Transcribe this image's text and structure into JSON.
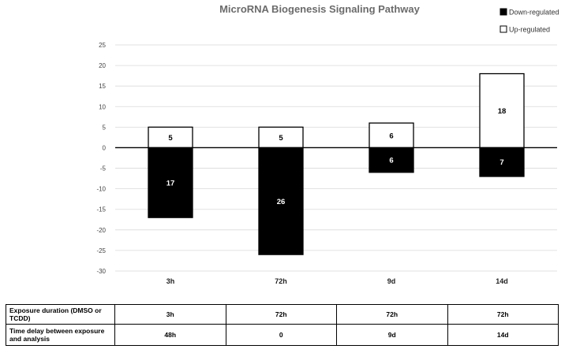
{
  "chart_data": {
    "type": "bar",
    "title": "MicroRNA Biogenesis Signaling Pathway",
    "categories": [
      "3h",
      "72h",
      "9d",
      "14d"
    ],
    "series": [
      {
        "name": "Down-regulated",
        "values": [
          -17,
          -26,
          -6,
          -7
        ],
        "labels": [
          "17",
          "26",
          "6",
          "7"
        ],
        "color": "#000000"
      },
      {
        "name": "Up-regulated",
        "values": [
          5,
          5,
          6,
          18
        ],
        "labels": [
          "5",
          "5",
          "6",
          "18"
        ],
        "color": "#ffffff"
      }
    ],
    "ylim": [
      -30,
      25
    ],
    "yticks": [
      "25",
      "20",
      "15",
      "10",
      "5",
      "0",
      "-5",
      "-10",
      "-15",
      "-20",
      "-25",
      "-30"
    ],
    "stacked": true,
    "grid": true,
    "legend_position": "top-right"
  },
  "table": {
    "rows": [
      {
        "header": "Exposure duration (DMSO or TCDD)",
        "cells": [
          "3h",
          "72h",
          "72h",
          "72h"
        ]
      },
      {
        "header": "Time delay between exposure and analysis",
        "cells": [
          "48h",
          "0",
          "9d",
          "14d"
        ]
      }
    ]
  }
}
